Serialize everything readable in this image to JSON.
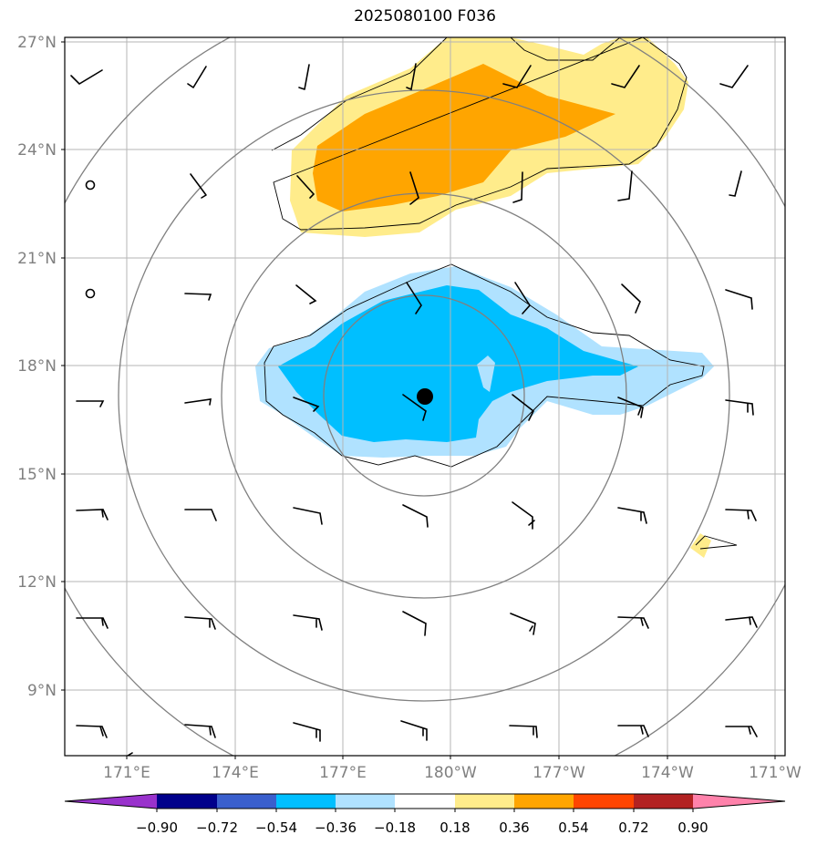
{
  "title": "2025080100 F036",
  "map": {
    "lat_labels": [
      "27°N",
      "24°N",
      "21°N",
      "18°N",
      "15°N",
      "12°N",
      "9°N"
    ],
    "lon_labels": [
      "171°E",
      "174°E",
      "177°E",
      "180°W",
      "177°W",
      "174°W",
      "171°W"
    ]
  },
  "colorbar": {
    "ticks": [
      "−0.90",
      "−0.72",
      "−0.54",
      "−0.36",
      "−0.18",
      "0.18",
      "0.36",
      "0.54",
      "0.72",
      "0.90"
    ],
    "colors": [
      "#9932cc",
      "#00008b",
      "#3a5fcd",
      "#00bfff",
      "#b0e2ff",
      "#ffffff",
      "#ffec8b",
      "#ffa500",
      "#ff4500",
      "#b22222",
      "#ff82ab"
    ]
  },
  "storm_center": {
    "lat": 17.1,
    "lon": 179.3,
    "marker": "filled-circle"
  }
}
